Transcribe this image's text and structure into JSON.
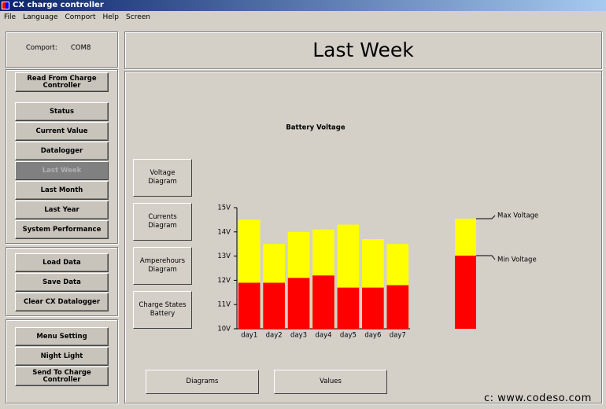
{
  "window": {
    "title": "CX charge controller"
  },
  "menu": [
    "File",
    "Language",
    "Comport",
    "Help",
    "Screen"
  ],
  "comport": {
    "label": "Comport:",
    "value": "COM8"
  },
  "sidebar": {
    "read_button": "Read From Charge Controller",
    "view_buttons": [
      "Status",
      "Current Value",
      "Datalogger",
      "Last Week",
      "Last Month",
      "Last Year",
      "System Performance"
    ],
    "data_buttons": [
      "Load Data",
      "Save Data",
      "Clear CX Datalogger"
    ],
    "settings_buttons": [
      "Menu Setting",
      "Night Light",
      "Send To Charge Controller"
    ]
  },
  "page_title": "Last Week",
  "diagram_buttons": [
    "Voltage Diagram",
    "Currents Diagram",
    "Amperehours Diagram",
    "Charge States Battery"
  ],
  "bottom_buttons": [
    "Diagrams",
    "Values"
  ],
  "watermark": "c: www.codeso.com",
  "chart_data": {
    "type": "bar",
    "title": "Battery Voltage",
    "categories": [
      "day1",
      "day2",
      "day3",
      "day4",
      "day5",
      "day6",
      "day7"
    ],
    "series": [
      {
        "name": "Max Voltage",
        "color": "#ffff00",
        "values": [
          14.5,
          13.5,
          14.0,
          14.1,
          14.3,
          13.7,
          13.5
        ]
      },
      {
        "name": "Min Voltage",
        "color": "#ff0000",
        "values": [
          11.9,
          11.9,
          12.1,
          12.2,
          11.7,
          11.7,
          11.8
        ]
      }
    ],
    "ylim": [
      10,
      15
    ],
    "yticks": [
      {
        "value": 10,
        "label": "10V"
      },
      {
        "value": 11,
        "label": "11V"
      },
      {
        "value": 12,
        "label": "12V"
      },
      {
        "value": 13,
        "label": "13V"
      },
      {
        "value": 14,
        "label": "14V"
      },
      {
        "value": 15,
        "label": "15V"
      }
    ],
    "legend": "right"
  }
}
